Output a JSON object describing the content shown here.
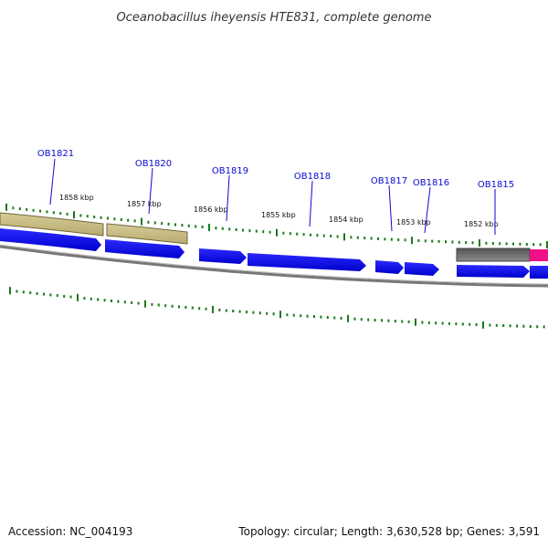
{
  "title": "Oceanobacillus iheyensis HTE831, complete genome",
  "footer": {
    "accession": "Accession: NC_004193",
    "summary": "Topology: circular; Length: 3,630,528 bp; Genes: 3,591"
  },
  "ruler": {
    "ticks": [
      {
        "label": "1858 kbp"
      },
      {
        "label": "1857 kbp"
      },
      {
        "label": "1856 kbp"
      },
      {
        "label": "1855 kbp"
      },
      {
        "label": "1854 kbp"
      },
      {
        "label": "1853 kbp"
      },
      {
        "label": "1852 kbp"
      }
    ]
  },
  "genes": [
    {
      "label": "OB1821"
    },
    {
      "label": "OB1820"
    },
    {
      "label": "OB1819"
    },
    {
      "label": "OB1818"
    },
    {
      "label": "OB1817"
    },
    {
      "label": "OB1816"
    },
    {
      "label": "OB1815"
    }
  ],
  "colors": {
    "cds_forward": "#0000ee",
    "backbone": "#888888",
    "gc_skew": "#1a7a1a",
    "olive_feature": "#c8bc82",
    "grey_feature": "#666666",
    "pink_feature": "#ee1188",
    "label_blue": "#0a0ad0"
  }
}
